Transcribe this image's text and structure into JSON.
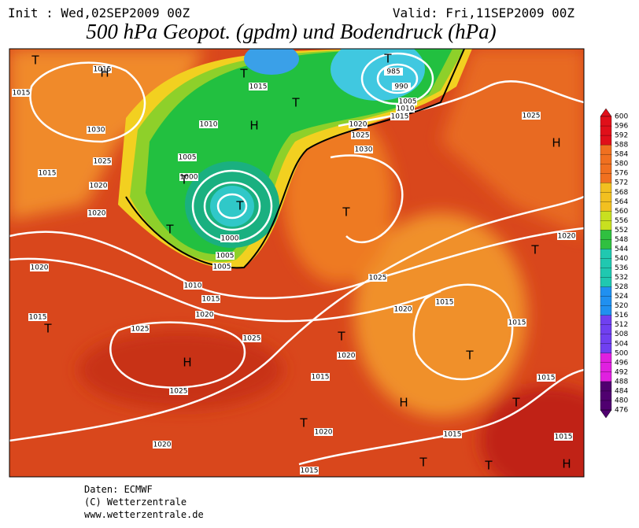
{
  "header": {
    "init": "Init : Wed,02SEP2009 00Z",
    "valid": "Valid: Fri,11SEP2009 00Z",
    "title": "500 hPa Geopot. (gpdm) und Bodendruck (hPa)"
  },
  "isobar_labels": [
    1015,
    1030,
    1025,
    1015,
    1020,
    1020,
    1010,
    1005,
    1000,
    1000,
    1005,
    1005,
    1010,
    1015,
    1020,
    1020,
    1015,
    1025,
    1025,
    1025,
    1020,
    1015,
    1015,
    1020,
    1020,
    1020,
    1025,
    1015,
    1015,
    1015,
    1015,
    1015,
    1020,
    1025,
    1020,
    1025,
    1030,
    1015,
    1010,
    1005,
    985,
    990,
    1015,
    1015
  ],
  "pressure_centers": [
    "T",
    "H",
    "T",
    "T",
    "T",
    "H",
    "T",
    "T",
    "T",
    "H",
    "T",
    "T",
    "T",
    "H",
    "T",
    "T",
    "H",
    "T",
    "T",
    "T",
    "T",
    "H"
  ],
  "colorbar": {
    "labels": [
      600,
      596,
      592,
      588,
      584,
      580,
      576,
      572,
      568,
      564,
      560,
      556,
      552,
      548,
      544,
      540,
      536,
      532,
      528,
      524,
      520,
      516,
      512,
      508,
      504,
      500,
      496,
      492,
      488,
      484,
      480,
      476
    ]
  },
  "footer": {
    "source": "Daten: ECMWF",
    "copyright": "(C) Wetterzentrale",
    "url": "www.wetterzentrale.de"
  }
}
